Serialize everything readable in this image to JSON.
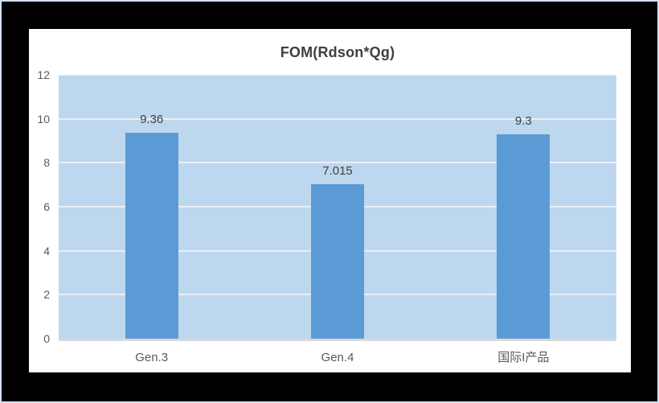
{
  "window": {
    "bg": "#000000",
    "border": "#D3E0F0",
    "panel_bg": "#FFFFFF"
  },
  "chart_data": {
    "type": "bar",
    "title": "FOM(Rdson*Qg)",
    "categories": [
      "Gen.3",
      "Gen.4",
      "国际I产品"
    ],
    "values": [
      9.36,
      7.015,
      9.3
    ],
    "value_labels": [
      "9.36",
      "7.015",
      "9.3"
    ],
    "xlabel": "",
    "ylabel": "",
    "ylim": [
      0,
      12
    ],
    "yticks": [
      0,
      2,
      4,
      6,
      8,
      10,
      12
    ],
    "grid": true,
    "legend": "none",
    "colors": {
      "bar": "#5B9BD5",
      "plot_bg": "#BDD7EE",
      "gridline": "#E9EFF7",
      "axis_line": "#D9D9D9",
      "title_text": "#404040",
      "value_text": "#404040",
      "tick_text": "#595959"
    }
  }
}
